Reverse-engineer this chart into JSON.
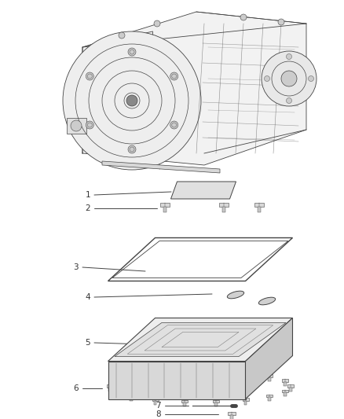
{
  "bg_color": "#ffffff",
  "line_color": "#444444",
  "label_color": "#333333",
  "figsize": [
    4.38,
    5.33
  ],
  "dpi": 100,
  "lw_main": 0.7,
  "lw_detail": 0.4,
  "gray_light": "#e8e8e8",
  "gray_mid": "#d0d0d0",
  "gray_dark": "#b0b0b0"
}
